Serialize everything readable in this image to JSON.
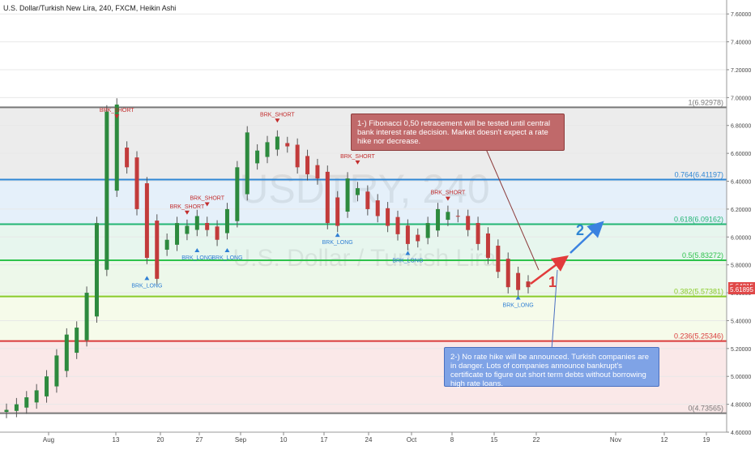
{
  "header": {
    "title": "U.S. Dollar/Turkish New Lira, 240, FXCM, Heikin Ashi"
  },
  "watermark": {
    "symbol": "USDTRY, 240",
    "name": "U.S. Dollar / Turkish Lira"
  },
  "chart_data": {
    "type": "candlestick",
    "ylim": [
      4.6,
      7.7
    ],
    "yticks": [
      "7.60000",
      "7.40000",
      "7.20000",
      "7.00000",
      "6.80000",
      "6.60000",
      "6.40000",
      "6.20000",
      "6.00000",
      "5.80000",
      "5.60000",
      "5.40000",
      "5.20000",
      "5.00000",
      "4.80000",
      "4.60000"
    ],
    "xtick_labels": [
      "Aug",
      "13",
      "20",
      "27",
      "Sep",
      "10",
      "17",
      "24",
      "Oct",
      "8",
      "15",
      "22",
      "Nov",
      "12",
      "19"
    ],
    "close_series": [
      4.76,
      4.8,
      4.85,
      4.9,
      5.0,
      5.15,
      5.3,
      5.35,
      5.6,
      6.1,
      6.9,
      6.95,
      6.5,
      6.2,
      5.85,
      5.7,
      5.98,
      6.1,
      6.08,
      6.15,
      6.05,
      5.98,
      6.2,
      6.5,
      6.75,
      6.62,
      6.68,
      6.72,
      6.65,
      6.5,
      6.45,
      6.42,
      6.1,
      6.08,
      6.42,
      6.35,
      6.2,
      6.15,
      6.08,
      6.02,
      5.95,
      5.97,
      6.1,
      6.2,
      6.18,
      6.15,
      6.05,
      5.95,
      5.85,
      5.75,
      5.64,
      5.62,
      5.64
    ],
    "fib_levels": [
      {
        "ratio": "1",
        "value": 6.92978,
        "label": "1(6.92978)",
        "color": "#787878"
      },
      {
        "ratio": "0.764",
        "value": 6.41197,
        "label": "0.764(6.41197)",
        "color": "#2f86d4"
      },
      {
        "ratio": "0.618",
        "value": 6.09162,
        "label": "0.618(6.09162)",
        "color": "#22b573"
      },
      {
        "ratio": "0.5",
        "value": 5.83272,
        "label": "0.5(5.83272)",
        "color": "#2ec24c"
      },
      {
        "ratio": "0.382",
        "value": 5.57381,
        "label": "0.382(5.57381)",
        "color": "#8acb2a"
      },
      {
        "ratio": "0.236",
        "value": 5.25346,
        "label": "0.236(5.25346)",
        "color": "#d93b3b"
      },
      {
        "ratio": "0",
        "value": 4.73565,
        "label": "0(4.73565)",
        "color": "#787878"
      }
    ],
    "price_boxes": [
      {
        "label": "5.64215",
        "value": 5.64215,
        "color": "#e04848"
      },
      {
        "label": "5.61895",
        "value": 5.61895,
        "color": "#e04848"
      }
    ],
    "signals": [
      {
        "text": "BRK_SHORT",
        "type": "short",
        "index": 11,
        "price": 6.85
      },
      {
        "text": "BRK_LONG",
        "type": "long",
        "index": 14,
        "price": 5.72
      },
      {
        "text": "BRK_SHORT",
        "type": "short",
        "index": 18,
        "price": 6.16
      },
      {
        "text": "BRK_LONG",
        "type": "long",
        "index": 19,
        "price": 5.92
      },
      {
        "text": "BRK_SHORT",
        "type": "short",
        "index": 20,
        "price": 6.22
      },
      {
        "text": "BRK_LONG",
        "type": "long",
        "index": 22,
        "price": 5.92
      },
      {
        "text": "BRK_SHORT",
        "type": "short",
        "index": 27,
        "price": 6.82
      },
      {
        "text": "BRK_LONG",
        "type": "long",
        "index": 33,
        "price": 6.03
      },
      {
        "text": "BRK_SHORT",
        "type": "short",
        "index": 35,
        "price": 6.52
      },
      {
        "text": "BRK_LONG",
        "type": "long",
        "index": 40,
        "price": 5.9
      },
      {
        "text": "BRK_SHORT",
        "type": "short",
        "index": 44,
        "price": 6.26
      },
      {
        "text": "BRK_LONG",
        "type": "long",
        "index": 51,
        "price": 5.58
      }
    ],
    "annotations": [
      {
        "id": "note1",
        "text": "1-) Fibonacci 0,50 retracement will be tested until central bank interest rate decision. Market doesn't expect a rate hike nor decrease.",
        "color": "#c0696a"
      },
      {
        "id": "note2",
        "text": "2-) No rate hike will be announced. Turkish companies are in danger. Lots of companies announce bankrupt's certificate to figure out short term debts without borrowing high rate loans.",
        "color": "#7fa3e6"
      }
    ],
    "arrow_labels": [
      {
        "text": "1",
        "color": "#d93b3b"
      },
      {
        "text": "2",
        "color": "#2f86d4"
      }
    ]
  }
}
